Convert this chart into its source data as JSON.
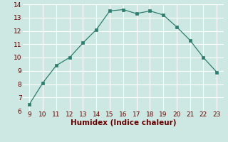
{
  "x": [
    9,
    10,
    11,
    12,
    13,
    14,
    15,
    16,
    17,
    18,
    19,
    20,
    21,
    22,
    23
  ],
  "y": [
    6.5,
    8.1,
    9.4,
    10.0,
    11.1,
    12.1,
    13.5,
    13.6,
    13.3,
    13.5,
    13.2,
    12.3,
    11.3,
    10.0,
    8.9
  ],
  "line_color": "#2e7d6e",
  "marker_color": "#2e7d6e",
  "bg_color": "#cde8e2",
  "grid_color": "#ffffff",
  "xlabel": "Humidex (Indice chaleur)",
  "xlim": [
    8.5,
    23.5
  ],
  "ylim": [
    6,
    14
  ],
  "xticks": [
    9,
    10,
    11,
    12,
    13,
    14,
    15,
    16,
    17,
    18,
    19,
    20,
    21,
    22,
    23
  ],
  "yticks": [
    6,
    7,
    8,
    9,
    10,
    11,
    12,
    13,
    14
  ],
  "xlabel_fontsize": 7.5,
  "tick_fontsize": 6.5,
  "tick_color": "#660000",
  "label_color": "#660000"
}
